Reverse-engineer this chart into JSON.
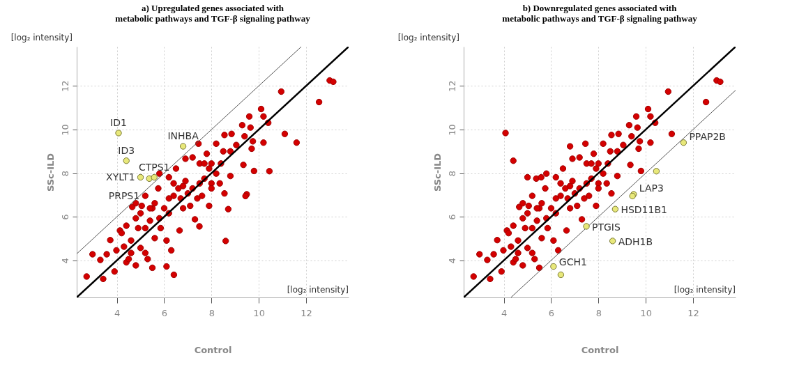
{
  "chart_data": [
    {
      "type": "scatter",
      "title": "a)  Upregulated genes associated with\nmetabolic pathways and TGF-β signaling pathway",
      "xlabel": "Control",
      "ylabel": "SSc-ILD",
      "xlim": [
        2.3,
        13.8
      ],
      "ylim": [
        2.3,
        13.8
      ],
      "xticks": [
        4,
        6,
        8,
        10,
        12
      ],
      "yticks": [
        4,
        6,
        8,
        10,
        12
      ],
      "grid": true,
      "marker": "circle",
      "series": [
        {
          "color": "#d40000",
          "x": [
            2.72,
            3.42,
            2.97,
            3.3,
            3.57,
            3.72,
            3.9,
            3.98,
            4.13,
            4.4,
            4.5,
            4.65,
            4.8,
            4.3,
            4.6,
            4.9,
            5.05,
            5.2,
            5.3,
            5.5,
            5.5,
            5.4,
            5.6,
            5.75,
            5.85,
            6.2,
            6.1,
            6.3,
            6.2,
            6.4,
            6.5,
            6.65,
            6.8,
            6.8,
            6.9,
            7.1,
            7.2,
            7.3,
            7.45,
            7.5,
            7.6,
            7.8,
            7.7,
            7.9,
            8.2,
            8.35,
            8.0,
            8.5,
            8.55,
            8.8,
            8.8,
            8.85,
            8.55,
            9.05,
            9.3,
            9.35,
            9.4,
            9.6,
            9.65,
            9.7,
            9.75,
            9.8,
            10.1,
            10.2,
            10.2,
            10.4,
            10.95,
            11.1,
            12.55,
            13.0,
            13.15,
            4.2,
            4.4,
            4.8,
            5.0,
            5.2,
            5.4,
            5.6,
            5.8,
            6.0,
            6.2,
            6.4,
            6.6,
            6.7,
            6.9,
            7.0,
            7.2,
            7.4,
            7.5,
            7.7,
            7.9,
            8.0,
            8.2,
            8.4,
            8.0,
            4.6,
            5.0,
            5.2,
            4.8,
            5.8,
            11.6,
            10.45,
            9.49,
            9.44,
            8.71,
            7.49,
            8.6,
            6.41,
            6.1
          ],
          "values": [
            3.26,
            3.15,
            4.28,
            4.02,
            4.28,
            4.93,
            3.49,
            4.46,
            5.37,
            3.91,
            4.06,
            6.45,
            3.77,
            4.63,
            4.91,
            5.48,
            6.5,
            4.34,
            4.06,
            3.66,
            6.39,
            5.82,
            5.02,
            7.3,
            5.48,
            7.81,
            4.91,
            4.46,
            6.16,
            6.96,
            8.21,
            5.37,
            7.41,
            6.39,
            8.66,
            6.5,
            8.72,
            5.88,
            9.35,
            8.44,
            6.96,
            8.89,
            7.75,
            6.5,
            9.35,
            7.53,
            8.44,
            9.0,
            7.07,
            7.87,
            9.0,
            9.8,
            9.75,
            9.29,
            10.2,
            8.38,
            9.69,
            10.6,
            10.09,
            9.12,
            9.46,
            8.1,
            10.94,
            10.6,
            9.4,
            10.31,
            11.74,
            9.8,
            11.26,
            12.25,
            12.19,
            5.25,
            5.59,
            5.93,
            6.16,
            6.96,
            6.39,
            6.62,
            5.93,
            6.39,
            6.84,
            7.53,
            7.3,
            6.84,
            7.64,
            7.07,
            7.3,
            6.84,
            7.53,
            8.44,
            8.21,
            7.53,
            7.98,
            8.44,
            7.3,
            4.34,
            4.57,
            5.48,
            6.62,
            7.98,
            9.4,
            8.09,
            7.03,
            6.95,
            6.35,
            5.56,
            4.89,
            3.34,
            3.72
          ]
        },
        {
          "color": "#e8e87a",
          "x": [
            4.07,
            4.4,
            5.0,
            5.37,
            5.58,
            6.8
          ],
          "values": [
            9.84,
            8.57,
            7.81,
            7.75,
            7.81,
            9.23
          ]
        },
        {
          "type": "line",
          "marker": "none",
          "color": "#000000",
          "x": [
            2.3,
            13.8
          ],
          "values": [
            2.3,
            13.8
          ]
        },
        {
          "type": "line",
          "marker": "none",
          "color": "#555555",
          "x": [
            2.3,
            11.8
          ],
          "values": [
            4.3,
            13.8
          ]
        }
      ],
      "annotations": [
        "[log₂ intensity]",
        "[log₂ intensity]",
        {
          "text": "ID1",
          "x": 4.07,
          "y": 9.84
        },
        {
          "text": "ID3",
          "x": 4.4,
          "y": 8.57
        },
        {
          "text": "XYLT1",
          "x": 5.0,
          "y": 7.81
        },
        {
          "text": "PRPS1",
          "x": 5.37,
          "y": 7.75
        },
        {
          "text": "CTPS1",
          "x": 5.58,
          "y": 7.81
        },
        {
          "text": "INHBA",
          "x": 6.8,
          "y": 9.23
        }
      ]
    },
    {
      "type": "scatter",
      "title": "b)  Downregulated genes associated with\nmetabolic pathways and TGF-β signaling pathway",
      "xlabel": "Control",
      "ylabel": "SSc-ILD",
      "xlim": [
        2.3,
        13.8
      ],
      "ylim": [
        2.3,
        13.8
      ],
      "xticks": [
        4,
        6,
        8,
        10,
        12
      ],
      "yticks": [
        4,
        6,
        8,
        10,
        12
      ],
      "grid": true,
      "marker": "circle",
      "series": [
        {
          "color": "#d40000",
          "x": [
            2.72,
            3.42,
            2.97,
            3.3,
            3.57,
            3.72,
            3.9,
            3.98,
            4.13,
            4.4,
            4.5,
            4.65,
            4.8,
            4.3,
            4.6,
            4.9,
            5.05,
            5.2,
            5.3,
            5.5,
            5.5,
            5.4,
            5.6,
            5.75,
            5.85,
            6.2,
            6.1,
            6.3,
            6.2,
            6.4,
            6.5,
            6.65,
            6.8,
            6.8,
            6.9,
            7.1,
            7.2,
            7.3,
            7.45,
            7.5,
            7.6,
            7.8,
            7.7,
            7.9,
            8.2,
            8.35,
            8.0,
            8.5,
            8.55,
            8.8,
            8.8,
            8.85,
            8.55,
            9.05,
            9.3,
            9.35,
            9.4,
            9.6,
            9.65,
            9.7,
            9.75,
            9.8,
            10.1,
            10.2,
            10.2,
            10.4,
            10.95,
            11.1,
            12.55,
            13.0,
            13.15,
            4.2,
            4.4,
            4.8,
            5.0,
            5.2,
            5.4,
            5.6,
            5.8,
            6.0,
            6.2,
            6.4,
            6.6,
            6.7,
            6.9,
            7.0,
            7.2,
            7.4,
            7.5,
            7.7,
            7.9,
            8.0,
            8.2,
            8.4,
            8.0,
            4.6,
            5.0,
            5.2,
            4.8,
            5.8,
            4.07,
            4.4,
            5.0,
            5.37,
            5.58,
            6.8
          ],
          "values": [
            3.26,
            3.15,
            4.28,
            4.02,
            4.28,
            4.93,
            3.49,
            4.46,
            5.37,
            3.91,
            4.06,
            6.45,
            3.77,
            4.63,
            4.91,
            5.48,
            6.5,
            4.34,
            4.06,
            3.66,
            6.39,
            5.82,
            5.02,
            7.3,
            5.48,
            7.81,
            4.91,
            4.46,
            6.16,
            6.96,
            8.21,
            5.37,
            7.41,
            6.39,
            8.66,
            6.5,
            8.72,
            5.88,
            9.35,
            8.44,
            6.96,
            8.89,
            7.75,
            6.5,
            9.35,
            7.53,
            8.44,
            9.0,
            7.07,
            7.87,
            9.0,
            9.8,
            9.75,
            9.29,
            10.2,
            8.38,
            9.69,
            10.6,
            10.09,
            9.12,
            9.46,
            8.1,
            10.94,
            10.6,
            9.4,
            10.31,
            11.74,
            9.8,
            11.26,
            12.25,
            12.19,
            5.25,
            5.59,
            5.93,
            6.16,
            6.96,
            6.39,
            6.62,
            5.93,
            6.39,
            6.84,
            7.53,
            7.3,
            6.84,
            7.64,
            7.07,
            7.3,
            6.84,
            7.53,
            8.44,
            8.21,
            7.53,
            7.98,
            8.44,
            7.3,
            4.34,
            4.57,
            5.48,
            6.62,
            7.98,
            9.84,
            8.57,
            7.81,
            7.75,
            7.81,
            9.23
          ]
        },
        {
          "color": "#e8e87a",
          "x": [
            11.6,
            10.45,
            9.49,
            9.44,
            8.71,
            7.49,
            8.6,
            6.41,
            6.1
          ],
          "values": [
            9.4,
            8.09,
            7.03,
            6.95,
            6.35,
            5.56,
            4.89,
            3.34,
            3.72
          ]
        },
        {
          "type": "line",
          "marker": "none",
          "color": "#000000",
          "x": [
            2.3,
            13.8
          ],
          "values": [
            2.3,
            13.8
          ]
        },
        {
          "type": "line",
          "marker": "none",
          "color": "#555555",
          "x": [
            4.3,
            13.8
          ],
          "values": [
            2.3,
            11.8
          ]
        }
      ],
      "annotations": [
        "[log₂ intensity]",
        "[log₂ intensity]",
        {
          "text": "PPAP2B",
          "x": 11.6,
          "y": 9.4
        },
        {
          "text": "LAP3",
          "x": 9.49,
          "y": 7.03
        },
        {
          "text": "HSD11B1",
          "x": 8.71,
          "y": 6.35
        },
        {
          "text": "PTGIS",
          "x": 7.49,
          "y": 5.56
        },
        {
          "text": "ADH1B",
          "x": 8.6,
          "y": 4.89
        },
        {
          "text": "GCH1",
          "x": 6.1,
          "y": 3.72
        }
      ]
    }
  ]
}
